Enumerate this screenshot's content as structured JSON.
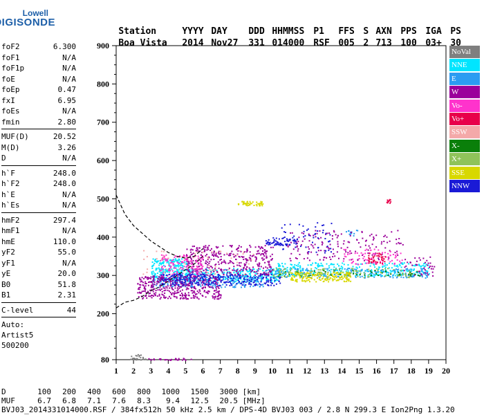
{
  "logo": {
    "line1": "Lowell",
    "line2": "DIGISONDE"
  },
  "header": {
    "labels": [
      "Station",
      "YYYY",
      "DAY",
      "DDD",
      "HHMMSS",
      "P1",
      "FFS",
      "S",
      "AXN",
      "PPS",
      "IGA",
      "PS"
    ],
    "values": [
      "Boa Vista",
      "2014",
      "Nov27",
      "331",
      "014000",
      "RSF",
      "005",
      "2",
      "713",
      "100",
      "03+",
      "30"
    ]
  },
  "params": {
    "group1": [
      {
        "k": "foF2",
        "v": "6.300"
      },
      {
        "k": "foF1",
        "v": "N/A"
      },
      {
        "k": "foF1p",
        "v": "N/A"
      },
      {
        "k": "foE",
        "v": "N/A"
      },
      {
        "k": "foEp",
        "v": "0.47"
      },
      {
        "k": "fxI",
        "v": "6.95"
      },
      {
        "k": "foEs",
        "v": "N/A"
      },
      {
        "k": "fmin",
        "v": "2.80"
      }
    ],
    "group2": [
      {
        "k": "MUF(D)",
        "v": "20.52"
      },
      {
        "k": "M(D)",
        "v": "3.26"
      },
      {
        "k": "D",
        "v": "N/A"
      }
    ],
    "group3": [
      {
        "k": "h`F",
        "v": "248.0"
      },
      {
        "k": "h`F2",
        "v": "248.0"
      },
      {
        "k": "h`E",
        "v": "N/A"
      },
      {
        "k": "h`Es",
        "v": "N/A"
      }
    ],
    "group4": [
      {
        "k": "hmF2",
        "v": "297.4"
      },
      {
        "k": "hmF1",
        "v": "N/A"
      },
      {
        "k": "hmE",
        "v": "110.0"
      },
      {
        "k": "yF2",
        "v": "55.0"
      },
      {
        "k": "yF1",
        "v": "N/A"
      },
      {
        "k": "yE",
        "v": "20.0"
      },
      {
        "k": "B0",
        "v": "51.8"
      },
      {
        "k": "B1",
        "v": "2.31"
      }
    ],
    "clevel": {
      "k": "C-level",
      "v": "44"
    },
    "auto": [
      "Auto:",
      "Artist5",
      "500200"
    ]
  },
  "legend": [
    {
      "label": "NoVal",
      "color": "#7f7f7f"
    },
    {
      "label": "NNE",
      "color": "#00e5ff"
    },
    {
      "label": "E",
      "color": "#2b9cf2"
    },
    {
      "label": "W",
      "color": "#9b009b"
    },
    {
      "label": "Vo-",
      "color": "#ff33cc"
    },
    {
      "label": "Vo+",
      "color": "#e8004a"
    },
    {
      "label": "SSW",
      "color": "#f4a9a9"
    },
    {
      "label": "X-",
      "color": "#0a7f0a"
    },
    {
      "label": "X+",
      "color": "#8fc35a"
    },
    {
      "label": "SSE",
      "color": "#d8d800"
    },
    {
      "label": "NNW",
      "color": "#1a1ad6"
    }
  ],
  "footer": {
    "row1": {
      "label": "D",
      "values": [
        "100",
        "200",
        "400",
        "600",
        "800",
        "1000",
        "1500",
        "3000"
      ],
      "unit": "[km]"
    },
    "row2": {
      "label": "MUF",
      "values": [
        "6.7",
        "6.8",
        "7.1",
        "7.6",
        "8.3",
        "9.4",
        "12.5",
        "20.5"
      ],
      "unit": "[MHz]"
    },
    "row3": "BVJ03_2014331014000.RSF / 384fx512h 50 kHz 2.5 km / DPS-4D BVJ03 003 / 2.8 N 299.3 E Ion2Png 1.3.20"
  },
  "chart_data": {
    "type": "scatter",
    "title": "",
    "xlabel": "",
    "ylabel": "",
    "xlim": [
      1,
      20
    ],
    "ylim": [
      80,
      900
    ],
    "xticks": [
      1,
      2,
      3,
      4,
      5,
      6,
      7,
      8,
      9,
      10,
      11,
      12,
      13,
      14,
      15,
      16,
      17,
      18,
      19,
      20
    ],
    "yticks": [
      80,
      200,
      300,
      400,
      500,
      600,
      700,
      800,
      900
    ],
    "grid": false,
    "legend_position": "right",
    "clusters": [
      {
        "name": "NNE",
        "x": [
          3.0,
          5.2
        ],
        "y": [
          290,
          345
        ],
        "n": 260
      },
      {
        "name": "NNE",
        "x": [
          5.0,
          10.5
        ],
        "y": [
          285,
          320
        ],
        "n": 260
      },
      {
        "name": "NNE",
        "x": [
          10.0,
          19.0
        ],
        "y": [
          300,
          335
        ],
        "n": 320
      },
      {
        "name": "E",
        "x": [
          3.0,
          9.5
        ],
        "y": [
          270,
          300
        ],
        "n": 260
      },
      {
        "name": "E",
        "x": [
          9.5,
          19.0
        ],
        "y": [
          295,
          320
        ],
        "n": 200
      },
      {
        "name": "E",
        "x": [
          14.2,
          14.9
        ],
        "y": [
          405,
          420
        ],
        "n": 15
      },
      {
        "name": "W",
        "x": [
          2.2,
          7.0
        ],
        "y": [
          240,
          300
        ],
        "n": 420
      },
      {
        "name": "W",
        "x": [
          5.0,
          10.0
        ],
        "y": [
          300,
          380
        ],
        "n": 380
      },
      {
        "name": "W",
        "x": [
          10.8,
          17.5
        ],
        "y": [
          340,
          420
        ],
        "n": 160
      },
      {
        "name": "W",
        "x": [
          17.5,
          19.3
        ],
        "y": [
          300,
          350
        ],
        "n": 40
      },
      {
        "name": "Vo-",
        "x": [
          3.5,
          6.0
        ],
        "y": [
          300,
          355
        ],
        "n": 140
      },
      {
        "name": "Vo-",
        "x": [
          14.0,
          17.5
        ],
        "y": [
          330,
          370
        ],
        "n": 80
      },
      {
        "name": "Vo+",
        "x": [
          15.5,
          16.5
        ],
        "y": [
          330,
          360
        ],
        "n": 40
      },
      {
        "name": "Vo+",
        "x": [
          16.5,
          16.8
        ],
        "y": [
          490,
          500
        ],
        "n": 10
      },
      {
        "name": "SSW",
        "x": [
          2.5,
          9.0
        ],
        "y": [
          300,
          370
        ],
        "n": 60
      },
      {
        "name": "X-",
        "x": [
          10.0,
          18.5
        ],
        "y": [
          300,
          315
        ],
        "n": 60
      },
      {
        "name": "X+",
        "x": [
          10.0,
          18.0
        ],
        "y": [
          295,
          320
        ],
        "n": 120
      },
      {
        "name": "SSE",
        "x": [
          8.0,
          9.5
        ],
        "y": [
          483,
          495
        ],
        "n": 45
      },
      {
        "name": "SSE",
        "x": [
          11.0,
          14.5
        ],
        "y": [
          285,
          310
        ],
        "n": 160
      },
      {
        "name": "NNW",
        "x": [
          3.5,
          10.5
        ],
        "y": [
          275,
          305
        ],
        "n": 240
      },
      {
        "name": "NNW",
        "x": [
          9.6,
          11.5
        ],
        "y": [
          380,
          400
        ],
        "n": 60
      },
      {
        "name": "NNW",
        "x": [
          10.5,
          13.5
        ],
        "y": [
          360,
          440
        ],
        "n": 60
      },
      {
        "name": "NoVal",
        "x": [
          1.8,
          2.8
        ],
        "y": [
          80,
          95
        ],
        "n": 25
      },
      {
        "name": "W",
        "x": [
          2.8,
          5.3
        ],
        "y": [
          80,
          85
        ],
        "n": 25
      }
    ],
    "critical_curve": {
      "style": "dashed",
      "upper": {
        "x": [
          1.0,
          1.5,
          2.0,
          2.5,
          3.0,
          3.5,
          4.0,
          4.5,
          5.0,
          5.5,
          6.0
        ],
        "y": [
          510,
          460,
          430,
          410,
          390,
          375,
          360,
          350,
          345,
          350,
          370
        ]
      },
      "lower": {
        "x": [
          1.0,
          1.5,
          2.0,
          2.5,
          3.0,
          3.5,
          4.0,
          4.5,
          5.0,
          5.5,
          6.0
        ],
        "y": [
          215,
          230,
          235,
          245,
          260,
          270,
          285,
          300,
          315,
          330,
          350
        ]
      }
    }
  }
}
